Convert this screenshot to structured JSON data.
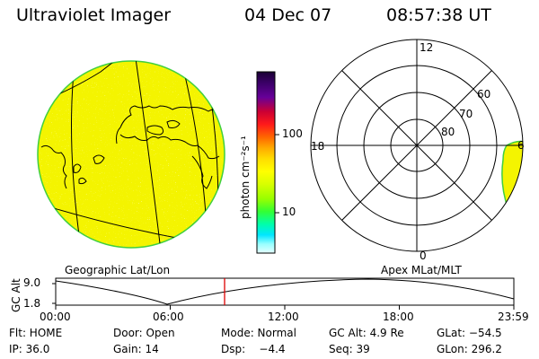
{
  "header": {
    "title": "Ultraviolet Imager",
    "date": "04 Dec 07",
    "time": "08:57:38 UT"
  },
  "image_panel": {
    "caption": "Geographic Lat/Lon"
  },
  "polar_panel": {
    "caption": "Apex MLat/MLT",
    "mlt_labels": [
      "12",
      "18",
      "6",
      "0"
    ],
    "lat_labels": [
      "60",
      "70",
      "80"
    ]
  },
  "colorbar": {
    "unit": "photon cm⁻²s⁻¹",
    "ticks": [
      {
        "label": "100",
        "value": 100
      },
      {
        "label": "10",
        "value": 10
      }
    ],
    "colors": [
      "#1a0033",
      "#3a0066",
      "#660099",
      "#cc0033",
      "#ff1a1a",
      "#ff6600",
      "#ffaa00",
      "#ffdd00",
      "#ffff00",
      "#d8ff00",
      "#99ff00",
      "#33ff33",
      "#00ffaa",
      "#00e6ff",
      "#99ffff",
      "#e6ffff"
    ]
  },
  "altitude_plot": {
    "ylabel": "GC Alt",
    "yticks": [
      "9.0",
      "1.8"
    ],
    "xticks": [
      "00:00",
      "06:00",
      "12:00",
      "18:00",
      "23:59"
    ],
    "marker_color": "#dd0000"
  },
  "status": {
    "flt": "Flt: HOME",
    "door": "Door: Open",
    "mode": "Mode: Normal",
    "gc_alt": "GC Alt: 4.9 Re",
    "glat": "GLat: −54.5",
    "ip": "IP: 36.0",
    "gain": "Gain: 14",
    "dsp": "Dsp:    −4.4",
    "seq": "Seq: 39",
    "glon": "GLon: 296.2"
  },
  "colors": {
    "aurora_fill": "#f4f400",
    "aurora_edge": "#3fcf3f",
    "grid": "#000000"
  }
}
